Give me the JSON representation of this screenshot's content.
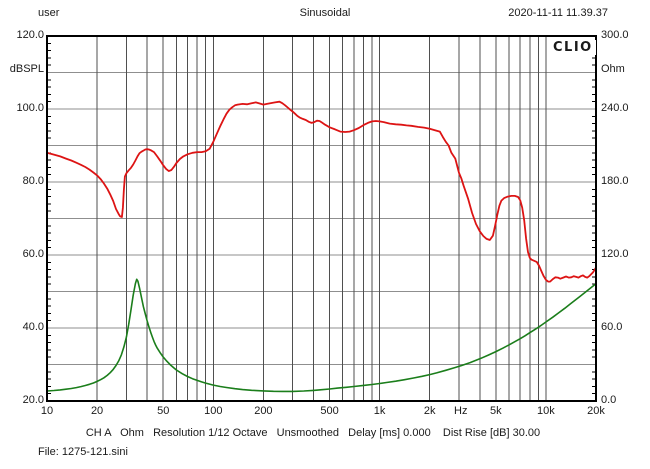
{
  "window": {
    "header_left": "user",
    "header_center": "Sinusoidal",
    "header_right": "2020-11-11 11.39.37",
    "logo": "CLIO",
    "status_bar": "CH A   Ohm   Resolution 1/12 Octave   Unsmoothed   Delay [ms] 0.000    Dist Rise [dB] 30.00",
    "file_label": "File: 1275-121.sini"
  },
  "chart_data": {
    "type": "line",
    "title": "Sinusoidal",
    "x_axis": {
      "scale": "log",
      "min": 10,
      "max": 20000,
      "unit": "Hz",
      "ticks": [
        {
          "f": 10,
          "label": "10"
        },
        {
          "f": 20,
          "label": "20"
        },
        {
          "f": 50,
          "label": "50"
        },
        {
          "f": 100,
          "label": "100"
        },
        {
          "f": 200,
          "label": "200"
        },
        {
          "f": 500,
          "label": "500"
        },
        {
          "f": 1000,
          "label": "1k"
        },
        {
          "f": 2000,
          "label": "2k"
        },
        {
          "f": 5000,
          "label": "5k"
        },
        {
          "f": 10000,
          "label": "10k"
        },
        {
          "f": 20000,
          "label": "20k"
        }
      ]
    },
    "left_axis": {
      "label": "dBSPL",
      "min": 20,
      "max": 120,
      "grid_step": 10,
      "minor_tick_step": 2,
      "ticks": [
        {
          "v": 120,
          "label": "120.0"
        },
        {
          "v": 100,
          "label": "100.0"
        },
        {
          "v": 80,
          "label": "80.0"
        },
        {
          "v": 60,
          "label": "60.0"
        },
        {
          "v": 40,
          "label": "40.0"
        },
        {
          "v": 20,
          "label": "20.0"
        }
      ]
    },
    "right_axis": {
      "label": "Ohm",
      "min": 0,
      "max": 300,
      "ticks": [
        {
          "v": 300,
          "label": "300.0"
        },
        {
          "v": 240,
          "label": "240.0"
        },
        {
          "v": 180,
          "label": "180.0"
        },
        {
          "v": 120,
          "label": "120.0"
        },
        {
          "v": 60,
          "label": "60.0"
        },
        {
          "v": 0,
          "label": "0.0"
        }
      ]
    },
    "grid": {
      "horizontal": "every 10 dB",
      "vertical": "log 1-2-...-9 per decade"
    },
    "series": [
      {
        "name": "SPL frequency response (CH A)",
        "color": "#dd1414",
        "width": 1.8,
        "axis": "left",
        "points": [
          [
            10,
            88
          ],
          [
            11,
            87.5
          ],
          [
            12,
            87
          ],
          [
            13,
            86.4
          ],
          [
            14,
            85.9
          ],
          [
            15,
            85.3
          ],
          [
            16,
            84.7
          ],
          [
            17,
            84.1
          ],
          [
            18,
            83.4
          ],
          [
            19,
            82.6
          ],
          [
            20,
            81.8
          ],
          [
            21,
            80.8
          ],
          [
            22,
            79.6
          ],
          [
            23,
            78.2
          ],
          [
            24,
            76.6
          ],
          [
            25,
            74.8
          ],
          [
            26,
            72.6
          ],
          [
            27,
            71.2
          ],
          [
            27.5,
            70.6
          ],
          [
            28.2,
            70.4
          ],
          [
            28.6,
            73
          ],
          [
            29,
            78
          ],
          [
            29.4,
            81.5
          ],
          [
            30,
            82.4
          ],
          [
            31,
            83.2
          ],
          [
            32,
            83.9
          ],
          [
            33,
            84.8
          ],
          [
            34,
            85.9
          ],
          [
            35,
            87
          ],
          [
            36,
            87.9
          ],
          [
            37,
            88.3
          ],
          [
            38,
            88.6
          ],
          [
            39,
            88.9
          ],
          [
            40,
            89
          ],
          [
            41,
            88.9
          ],
          [
            42,
            88.7
          ],
          [
            44,
            88.2
          ],
          [
            46,
            87
          ],
          [
            48,
            85.8
          ],
          [
            50,
            84.6
          ],
          [
            52,
            83.6
          ],
          [
            54,
            83
          ],
          [
            56,
            83.3
          ],
          [
            58,
            84.2
          ],
          [
            60,
            85.2
          ],
          [
            63,
            86.3
          ],
          [
            66,
            87
          ],
          [
            70,
            87.6
          ],
          [
            75,
            88
          ],
          [
            80,
            88.2
          ],
          [
            85,
            88.2
          ],
          [
            90,
            88.4
          ],
          [
            95,
            89.1
          ],
          [
            100,
            91
          ],
          [
            105,
            93.2
          ],
          [
            110,
            95.3
          ],
          [
            115,
            97.1
          ],
          [
            120,
            98.7
          ],
          [
            125,
            99.8
          ],
          [
            130,
            100.5
          ],
          [
            135,
            101
          ],
          [
            140,
            101.2
          ],
          [
            150,
            101.4
          ],
          [
            160,
            101.3
          ],
          [
            170,
            101.6
          ],
          [
            180,
            101.8
          ],
          [
            190,
            101.5
          ],
          [
            200,
            101.2
          ],
          [
            210,
            101.4
          ],
          [
            220,
            101.6
          ],
          [
            235,
            101.8
          ],
          [
            250,
            102
          ],
          [
            260,
            101.6
          ],
          [
            270,
            101
          ],
          [
            280,
            100.4
          ],
          [
            290,
            99.8
          ],
          [
            300,
            99.3
          ],
          [
            310,
            98.7
          ],
          [
            320,
            98.1
          ],
          [
            330,
            97.7
          ],
          [
            345,
            97.3
          ],
          [
            360,
            97
          ],
          [
            375,
            96.5
          ],
          [
            390,
            96.2
          ],
          [
            405,
            96.4
          ],
          [
            420,
            96.8
          ],
          [
            435,
            96.7
          ],
          [
            450,
            96.3
          ],
          [
            470,
            95.7
          ],
          [
            500,
            95
          ],
          [
            540,
            94.4
          ],
          [
            580,
            93.8
          ],
          [
            620,
            93.7
          ],
          [
            660,
            93.8
          ],
          [
            700,
            94.2
          ],
          [
            750,
            94.8
          ],
          [
            800,
            95.6
          ],
          [
            850,
            96.2
          ],
          [
            900,
            96.6
          ],
          [
            950,
            96.7
          ],
          [
            1000,
            96.6
          ],
          [
            1060,
            96.4
          ],
          [
            1150,
            96
          ],
          [
            1250,
            95.8
          ],
          [
            1350,
            95.7
          ],
          [
            1450,
            95.5
          ],
          [
            1550,
            95.4
          ],
          [
            1700,
            95.1
          ],
          [
            1850,
            94.9
          ],
          [
            2000,
            94.6
          ],
          [
            2150,
            94.2
          ],
          [
            2300,
            93.8
          ],
          [
            2400,
            92.3
          ],
          [
            2500,
            91
          ],
          [
            2600,
            90
          ],
          [
            2700,
            88
          ],
          [
            2850,
            86.4
          ],
          [
            3000,
            82.5
          ],
          [
            3100,
            81
          ],
          [
            3200,
            79
          ],
          [
            3400,
            75.5
          ],
          [
            3600,
            71.5
          ],
          [
            3800,
            68.5
          ],
          [
            4000,
            66.5
          ],
          [
            4200,
            65.2
          ],
          [
            4400,
            64.4
          ],
          [
            4600,
            64.1
          ],
          [
            4800,
            65.3
          ],
          [
            4950,
            68
          ],
          [
            5100,
            71
          ],
          [
            5250,
            73.5
          ],
          [
            5400,
            74.9
          ],
          [
            5600,
            75.6
          ],
          [
            5900,
            76
          ],
          [
            6200,
            76.2
          ],
          [
            6500,
            76.2
          ],
          [
            6800,
            75.9
          ],
          [
            7000,
            75
          ],
          [
            7200,
            73
          ],
          [
            7400,
            69.5
          ],
          [
            7600,
            64.5
          ],
          [
            7800,
            60.8
          ],
          [
            8000,
            59.2
          ],
          [
            8200,
            58.7
          ],
          [
            8500,
            58.4
          ],
          [
            8800,
            58.1
          ],
          [
            9100,
            57
          ],
          [
            9400,
            55.5
          ],
          [
            9700,
            54.2
          ],
          [
            10000,
            53.2
          ],
          [
            10300,
            52.7
          ],
          [
            10600,
            52.7
          ],
          [
            11000,
            53.4
          ],
          [
            11400,
            53.9
          ],
          [
            11800,
            53.8
          ],
          [
            12200,
            53.5
          ],
          [
            12700,
            53.8
          ],
          [
            13200,
            54.1
          ],
          [
            13700,
            53.8
          ],
          [
            14200,
            53.9
          ],
          [
            14700,
            54.2
          ],
          [
            15200,
            54
          ],
          [
            15700,
            53.8
          ],
          [
            16200,
            54.2
          ],
          [
            16700,
            54.4
          ],
          [
            17200,
            54
          ],
          [
            17700,
            53.8
          ],
          [
            18200,
            54.2
          ],
          [
            18700,
            54.7
          ],
          [
            19200,
            55.3
          ],
          [
            19600,
            55.9
          ],
          [
            20000,
            56.6
          ]
        ]
      },
      {
        "name": "Impedance",
        "color": "#1b7e1b",
        "width": 1.6,
        "axis": "right",
        "points": [
          [
            10,
            8.2
          ],
          [
            11,
            8.6
          ],
          [
            12,
            9.1
          ],
          [
            13,
            9.7
          ],
          [
            14,
            10.3
          ],
          [
            15,
            11
          ],
          [
            16,
            11.8
          ],
          [
            17,
            12.7
          ],
          [
            18,
            13.7
          ],
          [
            19,
            14.8
          ],
          [
            20,
            16.1
          ],
          [
            21,
            17.5
          ],
          [
            22,
            19.1
          ],
          [
            23,
            21
          ],
          [
            24,
            23.3
          ],
          [
            25,
            26
          ],
          [
            26,
            29.2
          ],
          [
            27,
            33
          ],
          [
            28,
            38
          ],
          [
            29,
            44.5
          ],
          [
            30,
            52.5
          ],
          [
            31,
            63
          ],
          [
            32,
            75
          ],
          [
            33,
            87
          ],
          [
            34,
            96.5
          ],
          [
            34.6,
            100
          ],
          [
            35.2,
            98.5
          ],
          [
            36,
            93
          ],
          [
            37,
            85
          ],
          [
            38,
            77.5
          ],
          [
            39,
            71.5
          ],
          [
            40,
            66
          ],
          [
            41,
            61
          ],
          [
            42,
            56.5
          ],
          [
            43,
            52.5
          ],
          [
            44,
            49
          ],
          [
            45,
            46
          ],
          [
            46,
            43.5
          ],
          [
            48,
            39.5
          ],
          [
            50,
            36.2
          ],
          [
            52,
            33.4
          ],
          [
            55,
            29.9
          ],
          [
            58,
            27.1
          ],
          [
            60,
            25.5
          ],
          [
            65,
            22.4
          ],
          [
            70,
            20.1
          ],
          [
            75,
            18.3
          ],
          [
            80,
            16.9
          ],
          [
            85,
            15.7
          ],
          [
            90,
            14.7
          ],
          [
            100,
            13.1
          ],
          [
            110,
            11.9
          ],
          [
            120,
            11.1
          ],
          [
            135,
            10.1
          ],
          [
            150,
            9.4
          ],
          [
            170,
            8.8
          ],
          [
            200,
            8.3
          ],
          [
            230,
            8
          ],
          [
            260,
            7.9
          ],
          [
            300,
            7.9
          ],
          [
            350,
            8.2
          ],
          [
            400,
            8.7
          ],
          [
            450,
            9.3
          ],
          [
            500,
            9.9
          ],
          [
            560,
            10.6
          ],
          [
            630,
            11.3
          ],
          [
            700,
            11.9
          ],
          [
            800,
            12.8
          ],
          [
            900,
            13.6
          ],
          [
            1000,
            14.4
          ],
          [
            1100,
            15.2
          ],
          [
            1250,
            16.3
          ],
          [
            1400,
            17.4
          ],
          [
            1600,
            18.9
          ],
          [
            1800,
            20.3
          ],
          [
            2000,
            21.7
          ],
          [
            2200,
            23.1
          ],
          [
            2500,
            25.2
          ],
          [
            2800,
            27.2
          ],
          [
            3100,
            29.1
          ],
          [
            3500,
            31.6
          ],
          [
            4000,
            34.7
          ],
          [
            4500,
            37.7
          ],
          [
            5000,
            40.6
          ],
          [
            5500,
            43.4
          ],
          [
            6000,
            46.1
          ],
          [
            6500,
            48.7
          ],
          [
            7000,
            51.2
          ],
          [
            7500,
            53.7
          ],
          [
            8000,
            56.1
          ],
          [
            8500,
            58.4
          ],
          [
            9000,
            60.6
          ],
          [
            9500,
            62.8
          ],
          [
            10000,
            64.9
          ],
          [
            11000,
            68.9
          ],
          [
            12000,
            72.7
          ],
          [
            13000,
            76.3
          ],
          [
            14000,
            79.7
          ],
          [
            15000,
            82.9
          ],
          [
            16000,
            85.9
          ],
          [
            17000,
            88.8
          ],
          [
            18000,
            91.5
          ],
          [
            19000,
            94
          ],
          [
            20000,
            96.4
          ]
        ]
      }
    ]
  }
}
